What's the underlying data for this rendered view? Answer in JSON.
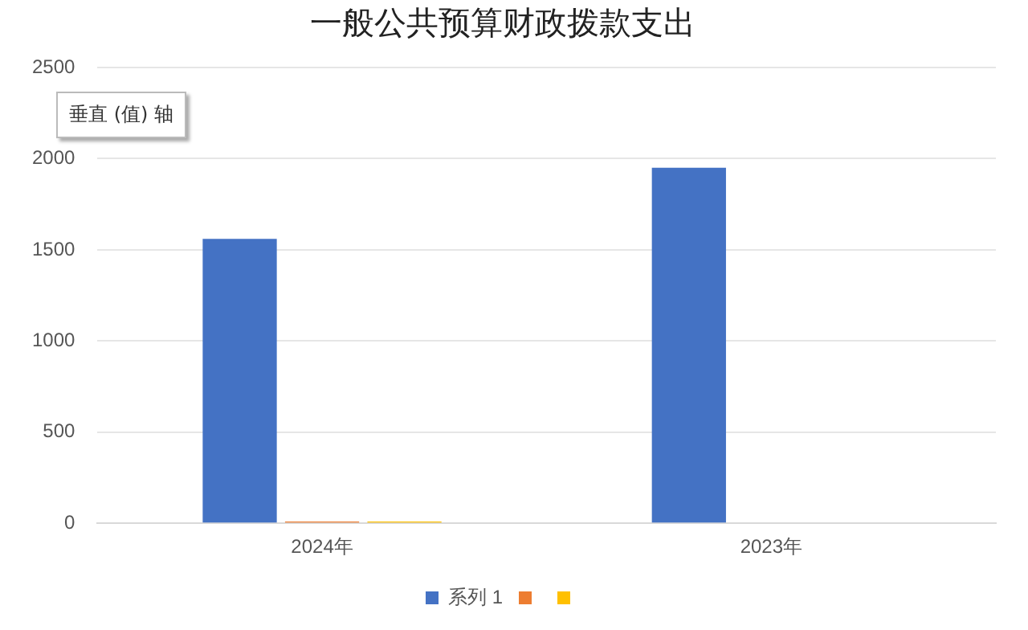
{
  "chart_data": {
    "type": "bar",
    "title": "一般公共预算财政拨款支出",
    "categories": [
      "2024年",
      "2023年"
    ],
    "series": [
      {
        "name": "系列 1",
        "color": "#4472c4",
        "values": [
          1560,
          1950
        ]
      },
      {
        "color": "#ed7d31",
        "values": [
          10,
          0
        ]
      },
      {
        "color": "#ffc000",
        "values": [
          10,
          0
        ]
      }
    ],
    "ylim": [
      0,
      2500
    ],
    "yticks": [
      0,
      500,
      1000,
      1500,
      2000,
      2500
    ],
    "grid": "y",
    "legend": "bottom",
    "annotations": [
      "垂直 (值) 轴"
    ]
  }
}
